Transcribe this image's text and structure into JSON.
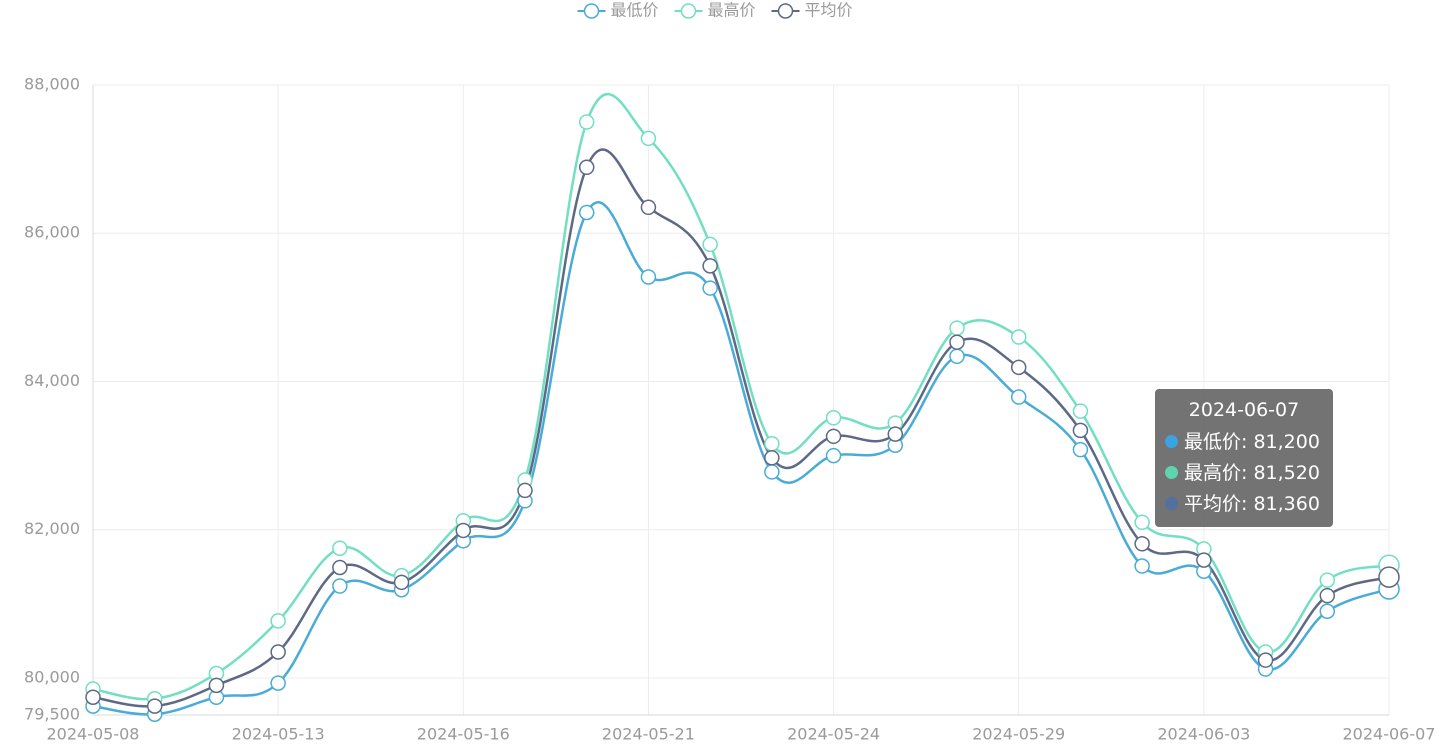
{
  "chart_data": {
    "type": "line",
    "categories": [
      "2024-05-08",
      null,
      null,
      "2024-05-13",
      null,
      null,
      "2024-05-16",
      null,
      null,
      "2024-05-21",
      null,
      null,
      "2024-05-24",
      null,
      null,
      "2024-05-29",
      null,
      null,
      "2024-06-03",
      null,
      null,
      "2024-06-07"
    ],
    "series": [
      {
        "name": "最低价",
        "color": "#4aacd6",
        "values": [
          79620,
          79510,
          79740,
          79930,
          81240,
          81190,
          81850,
          82390,
          86280,
          85410,
          85260,
          82780,
          83000,
          83140,
          84340,
          83790,
          83080,
          81510,
          81440,
          80120,
          80900,
          81200
        ]
      },
      {
        "name": "最高价",
        "color": "#72dfc2",
        "values": [
          79850,
          79720,
          80060,
          80770,
          81750,
          81380,
          82120,
          82670,
          87500,
          87280,
          85850,
          83160,
          83510,
          83440,
          84720,
          84600,
          83600,
          82100,
          81740,
          80350,
          81320,
          81520
        ]
      },
      {
        "name": "平均价",
        "color": "#5d6986",
        "values": [
          79740,
          79620,
          79900,
          80350,
          81490,
          81290,
          81990,
          82530,
          86890,
          86350,
          85560,
          82970,
          83260,
          83290,
          84530,
          84190,
          83340,
          81810,
          81590,
          80240,
          81110,
          81360
        ]
      }
    ],
    "ylim": [
      79500,
      88000
    ],
    "yticks": [
      {
        "value": 79500,
        "label": "79,500"
      },
      {
        "value": 80000,
        "label": "80,000"
      },
      {
        "value": 82000,
        "label": "82,000"
      },
      {
        "value": 84000,
        "label": "84,000"
      },
      {
        "value": 86000,
        "label": "86,000"
      },
      {
        "value": 88000,
        "label": "88,000"
      }
    ],
    "grid": true,
    "legend": "top",
    "tooltip": {
      "index": 21,
      "dot_colors": [
        "#3ba4e0",
        "#5fd3b0",
        "#5470a0"
      ],
      "labels": [
        "81,200",
        "81,520",
        "81,360"
      ]
    }
  }
}
